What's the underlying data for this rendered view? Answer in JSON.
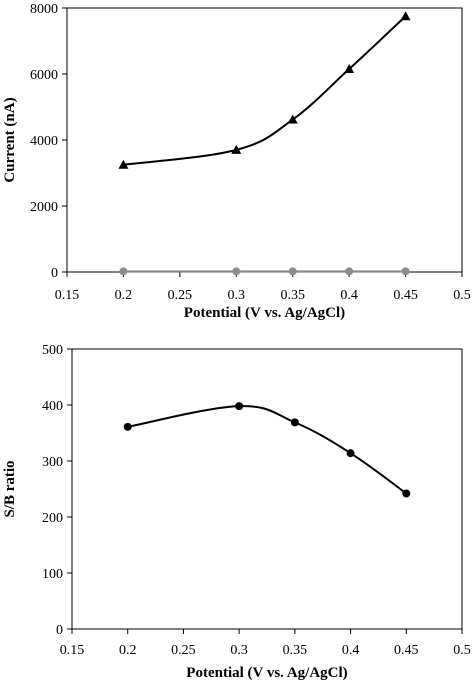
{
  "chart_data": [
    {
      "type": "line",
      "title": "",
      "xlabel": "Potential (V vs. Ag/AgCl)",
      "ylabel": "Current (nA)",
      "xlim": [
        0.15,
        0.5
      ],
      "ylim": [
        0,
        8000
      ],
      "xticks": [
        "0.15",
        "0.2",
        "0.25",
        "0.3",
        "0.35",
        "0.4",
        "0.45",
        "0.5"
      ],
      "yticks": [
        "0",
        "2000",
        "4000",
        "6000",
        "8000"
      ],
      "grid": false,
      "x": [
        0.2,
        0.3,
        0.35,
        0.4,
        0.45
      ],
      "series": [
        {
          "marker": "triangle",
          "color": "#000000",
          "values": [
            3250,
            3700,
            4620,
            6150,
            7750
          ]
        },
        {
          "marker": "circle",
          "color": "#8c8c8c",
          "values": [
            20,
            20,
            20,
            20,
            20
          ]
        }
      ]
    },
    {
      "type": "line",
      "title": "",
      "xlabel": "Potential (V vs. Ag/AgCl)",
      "ylabel": "S/B ratio",
      "xlim": [
        0.15,
        0.5
      ],
      "ylim": [
        0,
        500
      ],
      "xticks": [
        "0.15",
        "0.2",
        "0.25",
        "0.3",
        "0.35",
        "0.4",
        "0.45",
        "0.5"
      ],
      "yticks": [
        "0",
        "100",
        "200",
        "300",
        "400",
        "500"
      ],
      "grid": false,
      "x": [
        0.2,
        0.3,
        0.35,
        0.4,
        0.45
      ],
      "series": [
        {
          "marker": "circle",
          "color": "#000000",
          "values": [
            361,
            398,
            369,
            314,
            242
          ]
        }
      ]
    }
  ]
}
